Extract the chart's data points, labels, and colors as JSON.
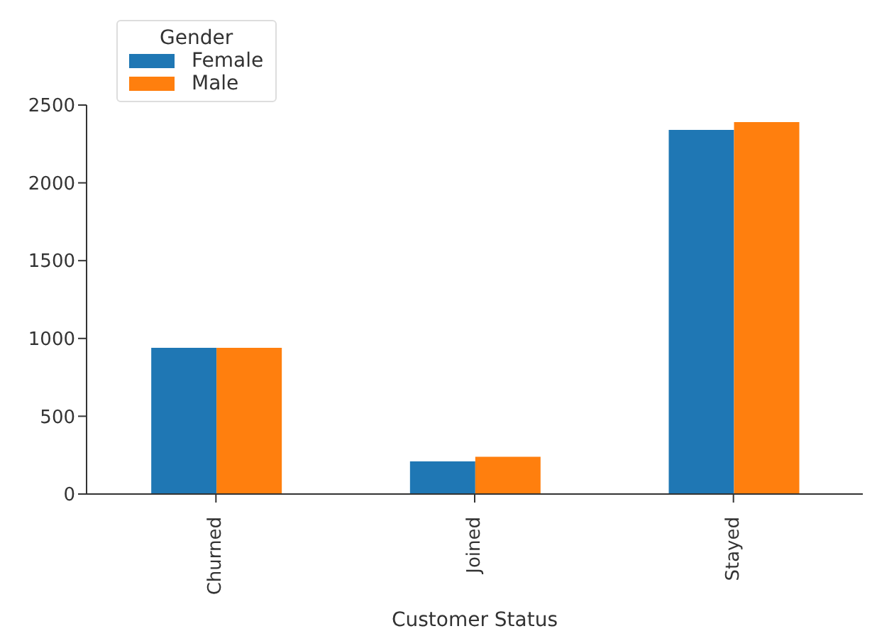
{
  "chart_data": {
    "type": "bar",
    "xlabel": "Customer Status",
    "legend_title": "Gender",
    "categories": [
      "Churned",
      "Joined",
      "Stayed"
    ],
    "series": [
      {
        "name": "Female",
        "color": "#1f77b4",
        "values": [
          940,
          210,
          2340
        ]
      },
      {
        "name": "Male",
        "color": "#ff7f0e",
        "values": [
          940,
          240,
          2390
        ]
      }
    ],
    "ylim": [
      0,
      2500
    ],
    "yticks": [
      0,
      500,
      1000,
      1500,
      2000,
      2500
    ],
    "grid": false,
    "legend": "top left"
  }
}
